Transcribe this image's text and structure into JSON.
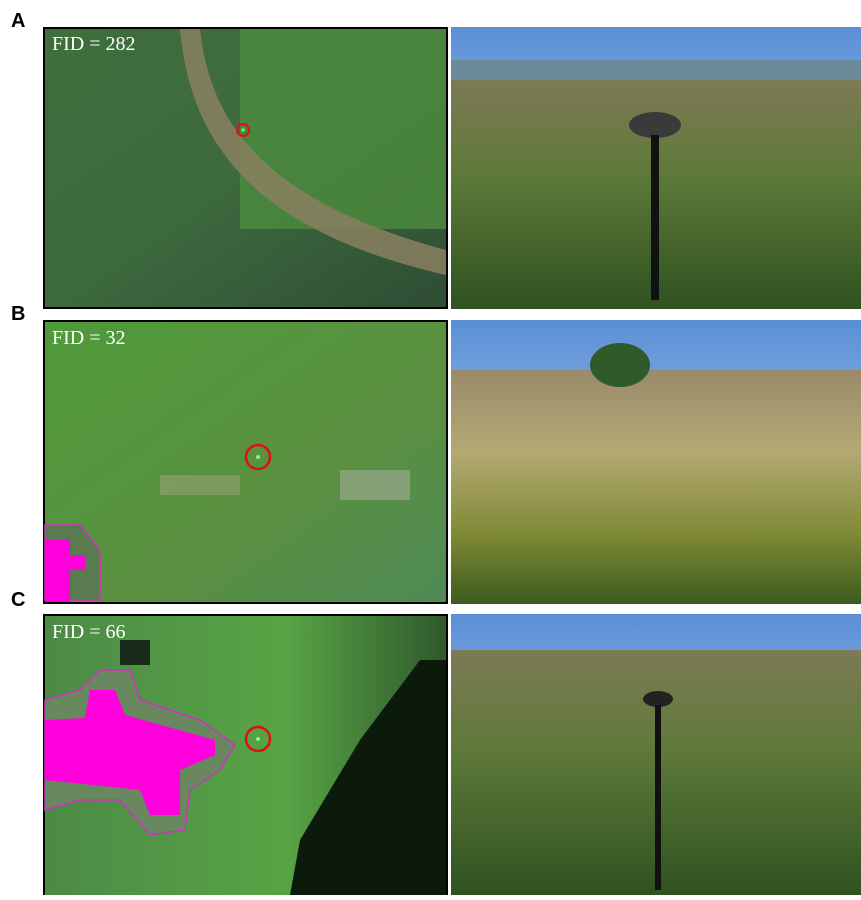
{
  "panels": [
    {
      "label": "A",
      "caption": "FID = 282"
    },
    {
      "label": "B",
      "caption": "FID = 32"
    },
    {
      "label": "C",
      "caption": "FID = 66"
    }
  ]
}
